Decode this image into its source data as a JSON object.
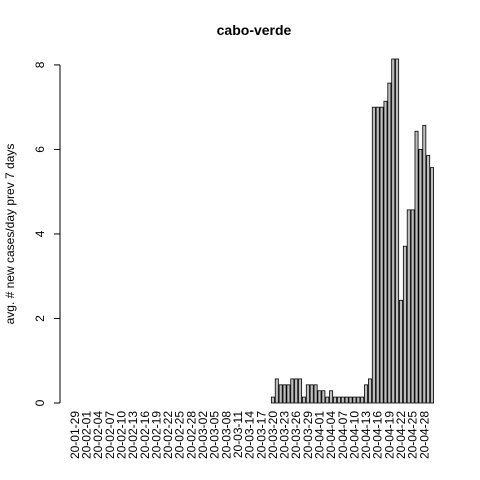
{
  "chart_data": {
    "type": "bar",
    "title": "cabo-verde",
    "y_label": "avg. # new cases/day prev  7  days",
    "categories": [
      "20-01-29",
      null,
      null,
      "20-02-01",
      null,
      null,
      "20-02-04",
      null,
      null,
      "20-02-07",
      null,
      null,
      "20-02-10",
      null,
      null,
      "20-02-13",
      null,
      null,
      "20-02-16",
      null,
      null,
      "20-02-19",
      null,
      null,
      "20-02-22",
      null,
      null,
      "20-02-25",
      null,
      null,
      "20-02-28",
      null,
      null,
      "20-03-02",
      null,
      null,
      "20-03-05",
      null,
      null,
      "20-03-08",
      null,
      null,
      "20-03-11",
      null,
      null,
      "20-03-14",
      null,
      null,
      "20-03-17",
      null,
      null,
      "20-03-20",
      null,
      null,
      "20-03-23",
      null,
      null,
      "20-03-26",
      null,
      null,
      "20-03-29",
      null,
      null,
      "20-04-01",
      null,
      null,
      "20-04-04",
      null,
      null,
      "20-04-07",
      null,
      null,
      "20-04-10",
      null,
      null,
      "20-04-13",
      null,
      null,
      "20-04-16",
      null,
      null,
      "20-04-19",
      null,
      null,
      "20-04-22",
      null,
      null,
      "20-04-25",
      null,
      null,
      "20-04-28",
      null,
      null
    ],
    "values": [
      0,
      0,
      0,
      0,
      0,
      0,
      0,
      0,
      0,
      0,
      0,
      0,
      0,
      0,
      0,
      0,
      0,
      0,
      0,
      0,
      0,
      0,
      0,
      0,
      0,
      0,
      0,
      0,
      0,
      0,
      0,
      0,
      0,
      0,
      0,
      0,
      0,
      0,
      0,
      0,
      0,
      0,
      0,
      0,
      0,
      0,
      0,
      0,
      0,
      0,
      0,
      0.14,
      0.57,
      0.43,
      0.43,
      0.43,
      0.57,
      0.57,
      0.57,
      0.14,
      0.43,
      0.43,
      0.43,
      0.29,
      0.29,
      0.14,
      0.29,
      0.14,
      0.14,
      0.14,
      0.14,
      0.14,
      0.14,
      0.14,
      0.14,
      0.43,
      0.57,
      7,
      7,
      7,
      7.14,
      7.57,
      8.14,
      8.14,
      2.43,
      3.71,
      4.57,
      4.57,
      6.43,
      6,
      6.57,
      5.86,
      5.57
    ],
    "color": "#bebebe",
    "ylim": [
      0,
      8.14
    ],
    "yticks": [
      0,
      2,
      4,
      6,
      8
    ]
  }
}
